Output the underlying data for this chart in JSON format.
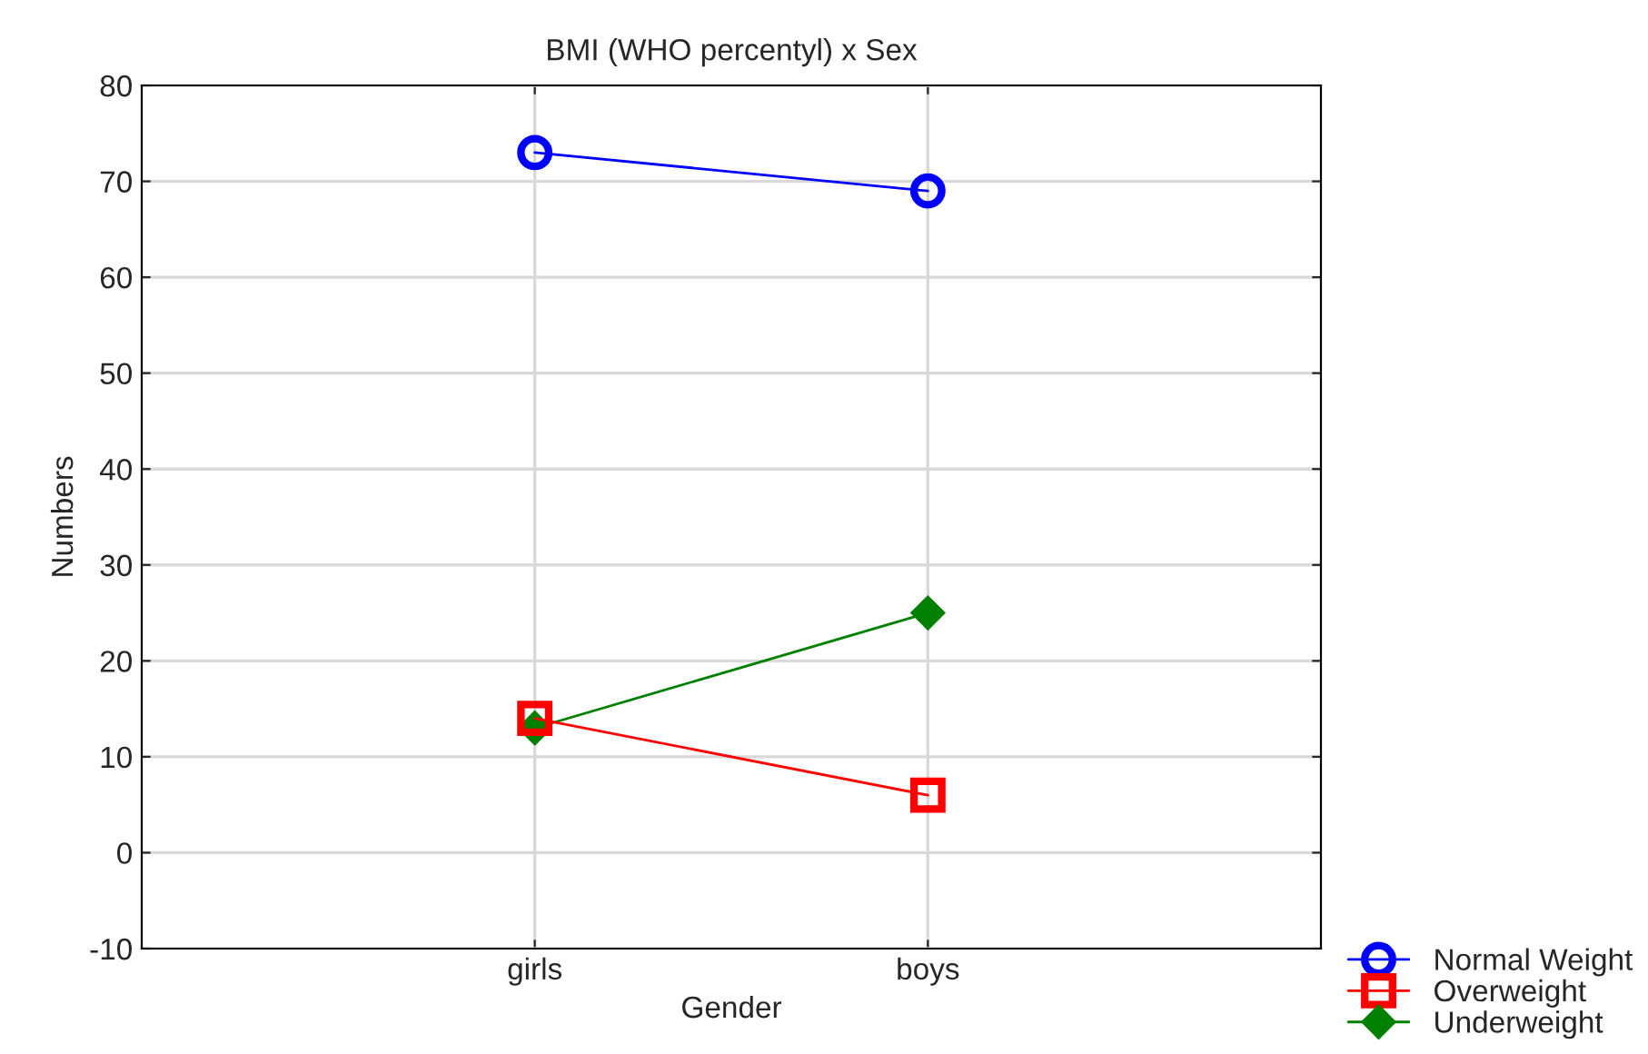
{
  "chart_data": {
    "type": "line",
    "title": "BMI (WHO percentyl) x Sex",
    "xlabel": "Gender",
    "ylabel": "Numbers",
    "categories": [
      "girls",
      "boys"
    ],
    "series": [
      {
        "name": "Normal Weight",
        "color": "#0000ff",
        "values": [
          73,
          69
        ],
        "marker": "circle"
      },
      {
        "name": "Overweight",
        "color": "#ff0000",
        "values": [
          14,
          6
        ],
        "marker": "square"
      },
      {
        "name": "Underweight",
        "color": "#008000",
        "values": [
          13,
          25
        ],
        "marker": "diamond"
      }
    ],
    "ylim": [
      -10,
      80
    ],
    "yticks": [
      -10,
      0,
      10,
      20,
      30,
      40,
      50,
      60,
      70,
      80
    ],
    "grid": true,
    "legend": "bottom right",
    "line_style": "solid"
  }
}
